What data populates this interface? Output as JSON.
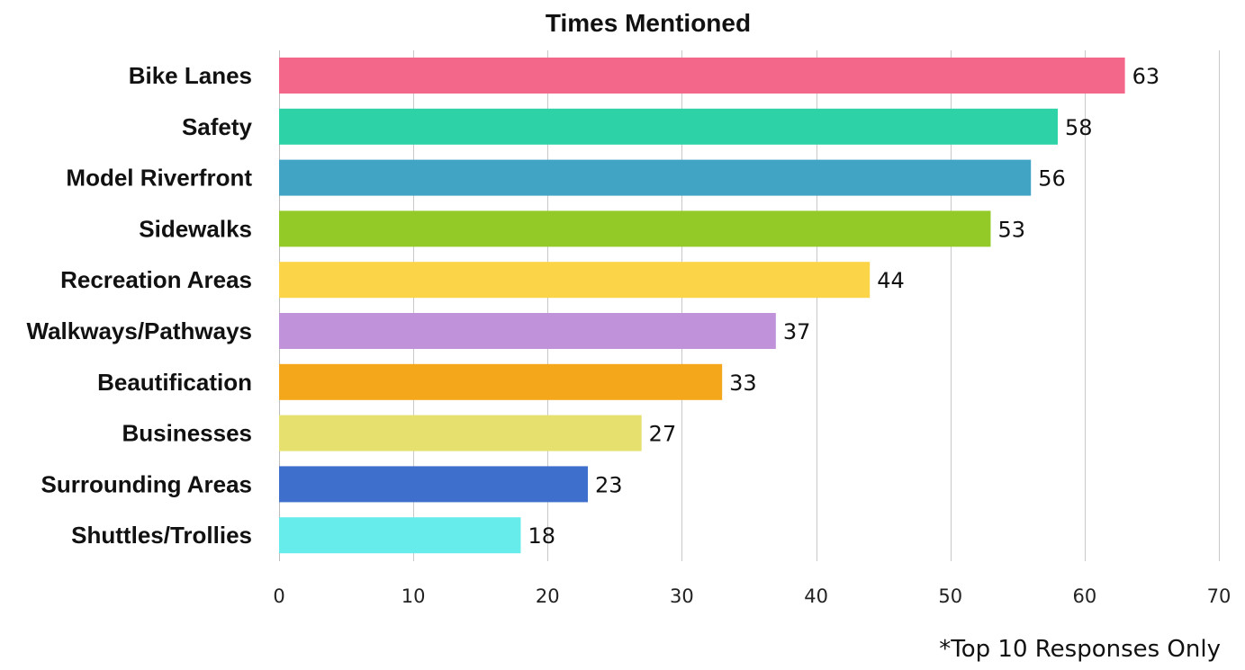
{
  "chart_data": {
    "type": "bar",
    "orientation": "horizontal",
    "title": "Times Mentioned",
    "categories": [
      "Bike Lanes",
      "Safety",
      "Model Riverfront",
      "Sidewalks",
      "Recreation Areas",
      "Walkways/Pathways",
      "Beautification",
      "Businesses",
      "Surrounding Areas",
      "Shuttles/Trollies"
    ],
    "values": [
      63,
      58,
      56,
      53,
      44,
      37,
      33,
      27,
      23,
      18
    ],
    "colors": [
      "#f2678a",
      "#2dd3a6",
      "#41a4c4",
      "#93ca28",
      "#fcd447",
      "#bf92da",
      "#f5a71c",
      "#e6e16e",
      "#3e6fcd",
      "#67ecec"
    ],
    "xlim": [
      0,
      70
    ],
    "xticks": [
      0,
      10,
      20,
      30,
      40,
      50,
      60,
      70
    ],
    "grid": true,
    "data_labels": true,
    "legend": "none"
  },
  "footnote": "*Top 10 Responses Only"
}
